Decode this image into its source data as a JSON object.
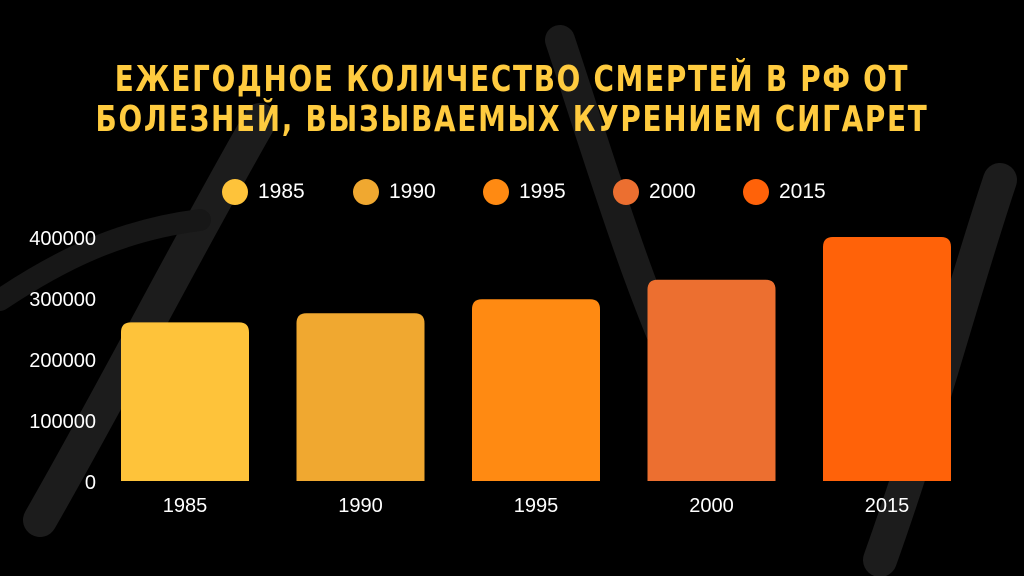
{
  "chart_data": {
    "type": "bar",
    "title_lines": [
      "Ежегодное количество смертей в РФ от",
      "болезней, вызываемых курением сигарет"
    ],
    "categories": [
      "1985",
      "1990",
      "1995",
      "2000",
      "2015"
    ],
    "values": [
      260000,
      275000,
      298000,
      330000,
      400000
    ],
    "colors": [
      "#fec33a",
      "#f0a830",
      "#ff8a12",
      "#ec6f30",
      "#ff6209"
    ],
    "ylim": [
      0,
      400000
    ],
    "yticks": [
      "0",
      "100000",
      "200000",
      "300000",
      "400000"
    ],
    "legend": [
      "1985",
      "1990",
      "1995",
      "2000",
      "2015"
    ],
    "legend_position": "top",
    "grid": false
  }
}
